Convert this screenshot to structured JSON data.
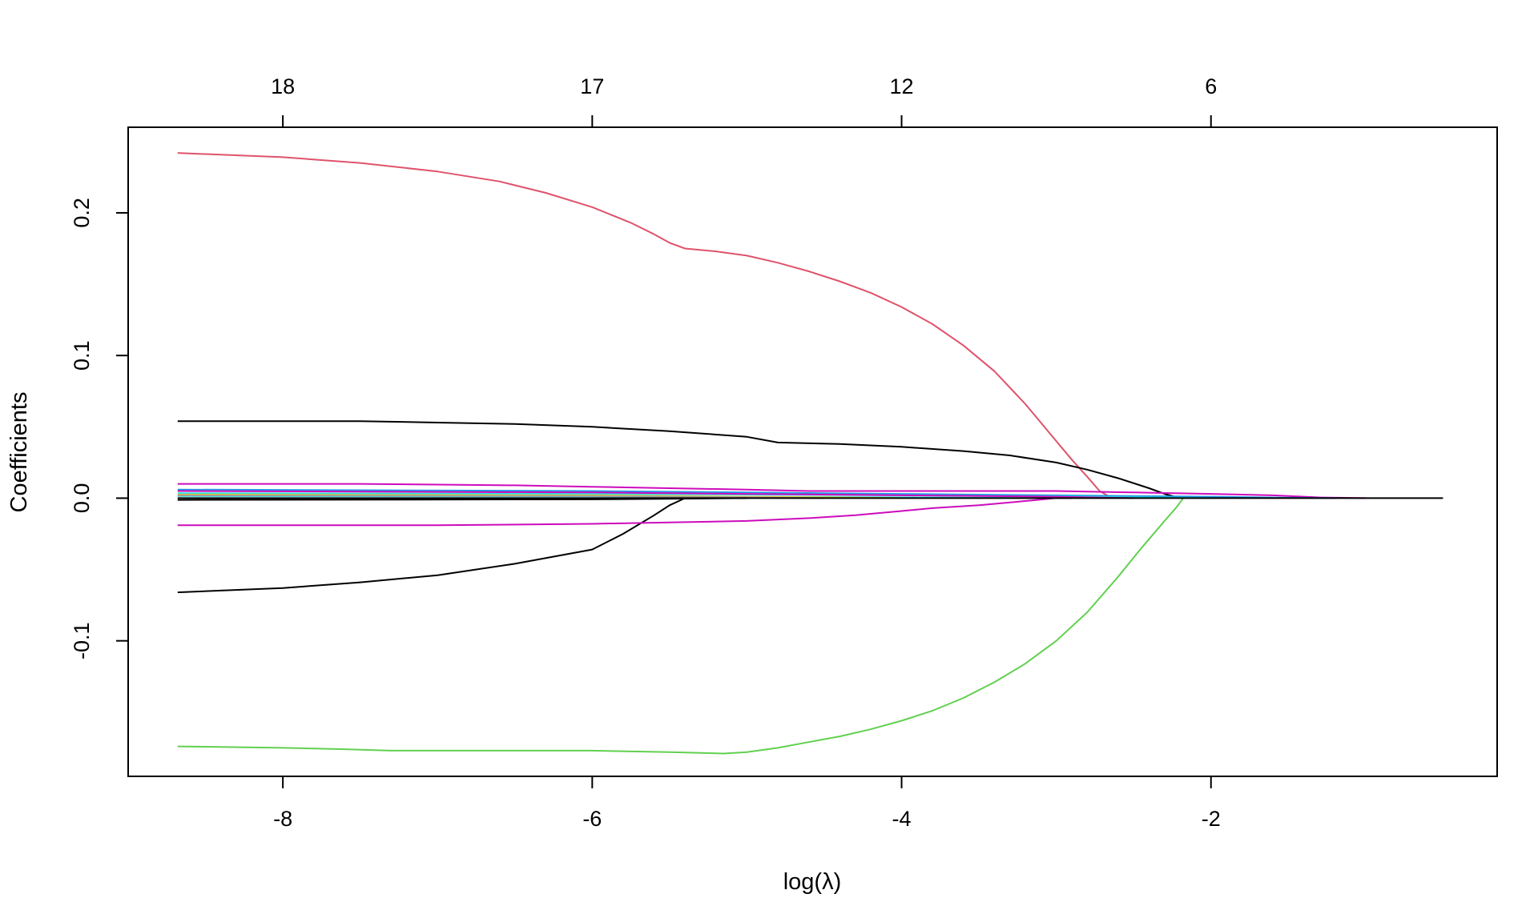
{
  "chart_data": {
    "type": "line",
    "title": "",
    "xlabel": "log(λ)",
    "ylabel": "Coefficients",
    "xlim": [
      -9.0,
      -0.15
    ],
    "ylim": [
      -0.195,
      0.26
    ],
    "x_ticks": [
      -8,
      -6,
      -4,
      -2
    ],
    "x_tick_labels": [
      "-8",
      "-6",
      "-4",
      "-2"
    ],
    "y_ticks": [
      -0.1,
      0.0,
      0.1,
      0.2
    ],
    "y_tick_labels": [
      "-0.1",
      "0.0",
      "0.1",
      "0.2"
    ],
    "top_axis": {
      "ticks": [
        -8,
        -6,
        -4,
        -2
      ],
      "labels": [
        "18",
        "17",
        "12",
        "6"
      ]
    },
    "grid": false,
    "legend": "none",
    "series": [
      {
        "color": "#DF536B",
        "x": [
          -8.68,
          -8.0,
          -7.5,
          -7.0,
          -6.6,
          -6.3,
          -6.0,
          -5.75,
          -5.6,
          -5.5,
          -5.4,
          -5.2,
          -5.0,
          -4.8,
          -4.6,
          -4.4,
          -4.2,
          -4.0,
          -3.8,
          -3.6,
          -3.4,
          -3.2,
          -3.0,
          -2.9,
          -2.8,
          -2.72,
          -2.64
        ],
        "y": [
          0.242,
          0.239,
          0.235,
          0.229,
          0.222,
          0.214,
          0.204,
          0.193,
          0.185,
          0.179,
          0.175,
          0.173,
          0.17,
          0.165,
          0.159,
          0.152,
          0.144,
          0.134,
          0.122,
          0.107,
          0.089,
          0.066,
          0.04,
          0.027,
          0.015,
          0.005,
          0.0
        ]
      },
      {
        "color": "#61D04F",
        "x": [
          -8.68,
          -8.0,
          -7.6,
          -7.3,
          -7.0,
          -6.5,
          -6.0,
          -5.5,
          -5.15,
          -5.0,
          -4.8,
          -4.6,
          -4.4,
          -4.2,
          -4.0,
          -3.8,
          -3.6,
          -3.4,
          -3.2,
          -3.0,
          -2.8,
          -2.6,
          -2.45,
          -2.3,
          -2.22,
          -2.18
        ],
        "y": [
          -0.174,
          -0.175,
          -0.176,
          -0.177,
          -0.177,
          -0.177,
          -0.177,
          -0.178,
          -0.179,
          -0.178,
          -0.175,
          -0.171,
          -0.167,
          -0.162,
          -0.156,
          -0.149,
          -0.14,
          -0.129,
          -0.116,
          -0.1,
          -0.08,
          -0.055,
          -0.035,
          -0.016,
          -0.006,
          0.0
        ]
      },
      {
        "color": "#000000",
        "x": [
          -8.68,
          -8.0,
          -7.5,
          -7.0,
          -6.5,
          -6.0,
          -5.8,
          -5.6,
          -5.5,
          -5.4,
          -5.3
        ],
        "y": [
          -0.066,
          -0.063,
          -0.059,
          -0.054,
          -0.046,
          -0.036,
          -0.025,
          -0.012,
          -0.005,
          0.0,
          0.0
        ]
      },
      {
        "color": "#000000",
        "x": [
          -8.68,
          -8.0,
          -7.5,
          -7.0,
          -6.5,
          -6.0,
          -5.5,
          -5.0,
          -4.8,
          -4.4,
          -4.0,
          -3.6,
          -3.3,
          -3.0,
          -2.8,
          -2.6,
          -2.4,
          -2.3,
          -2.2
        ],
        "y": [
          0.054,
          0.054,
          0.054,
          0.053,
          0.052,
          0.05,
          0.047,
          0.043,
          0.039,
          0.038,
          0.036,
          0.033,
          0.03,
          0.025,
          0.02,
          0.014,
          0.007,
          0.003,
          0.0
        ]
      },
      {
        "color": "#CD0BBC",
        "x": [
          -8.68,
          -8.0,
          -7.0,
          -6.0,
          -5.5,
          -5.0,
          -4.6,
          -4.3,
          -4.0,
          -3.8,
          -3.5,
          -3.2,
          -3.0,
          -2.9
        ],
        "y": [
          -0.019,
          -0.019,
          -0.019,
          -0.018,
          -0.017,
          -0.016,
          -0.014,
          -0.012,
          -0.009,
          -0.007,
          -0.005,
          -0.002,
          0.0,
          0.0
        ]
      },
      {
        "color": "#CD0BBC",
        "x": [
          -8.68,
          -7.5,
          -6.5,
          -6.0,
          -5.5,
          -5.0,
          -4.6,
          -4.0,
          -3.5,
          -3.0,
          -2.5,
          -2.0,
          -1.6,
          -1.3,
          -1.0
        ],
        "y": [
          0.01,
          0.01,
          0.009,
          0.008,
          0.007,
          0.006,
          0.005,
          0.005,
          0.005,
          0.005,
          0.004,
          0.003,
          0.002,
          0.0005,
          0.0
        ]
      },
      {
        "color": "#2297E6",
        "x": [
          -8.68,
          -6.0,
          -5.0,
          -4.0,
          -3.0,
          -2.5,
          -2.0,
          -1.5,
          -1.2
        ],
        "y": [
          0.006,
          0.005,
          0.004,
          0.003,
          0.002,
          0.0015,
          0.001,
          0.0003,
          0.0
        ]
      },
      {
        "color": "#28E2E5",
        "x": [
          -8.68,
          -6.0,
          -5.0,
          -4.0,
          -3.0,
          -2.5,
          -2.0
        ],
        "y": [
          0.0035,
          0.003,
          0.0025,
          0.002,
          0.0012,
          0.0006,
          0.0
        ]
      },
      {
        "color": "#28E2E5",
        "x": [
          -8.68,
          -6.0,
          -4.5,
          -3.5,
          -3.0
        ],
        "y": [
          0.0015,
          0.0012,
          0.0008,
          0.0003,
          0.0
        ]
      },
      {
        "color": "#F5C710",
        "x": [
          -8.68,
          -6.0,
          -5.0,
          -4.0
        ],
        "y": [
          0.0025,
          0.002,
          0.001,
          0.0
        ]
      },
      {
        "color": "#9E9E9E",
        "x": [
          -8.68,
          -6.0,
          -5.0,
          -4.5
        ],
        "y": [
          0.002,
          0.0015,
          0.0007,
          0.0
        ]
      },
      {
        "color": "#CD0BBC",
        "x": [
          -8.68,
          -6.0,
          -5.0,
          -4.0,
          -3.0,
          -2.5
        ],
        "y": [
          0.005,
          0.004,
          0.003,
          0.002,
          0.001,
          0.0
        ]
      },
      {
        "color": "#000000",
        "x": [
          -8.68,
          -6.0,
          -5.0
        ],
        "y": [
          -0.0012,
          -0.0008,
          0.0
        ]
      },
      {
        "color": "#000000",
        "x": [
          -8.68,
          -6.0,
          -4.0,
          -2.0,
          -0.5
        ],
        "y": [
          0.0,
          0.0,
          0.0,
          0.0,
          0.0
        ]
      }
    ]
  }
}
